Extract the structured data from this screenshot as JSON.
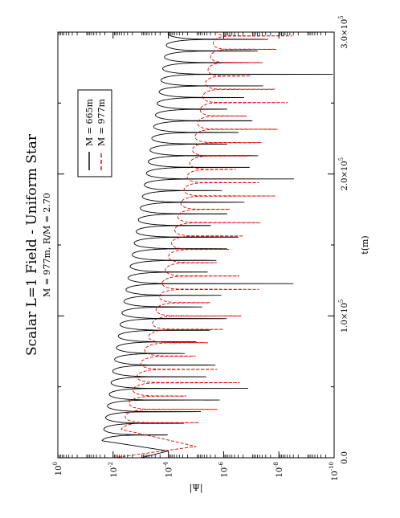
{
  "chart_data": {
    "type": "line",
    "title": "Scalar L=1 Field - Uniform Star",
    "subtitle": "M = 977m, R/M = 2.70",
    "xlabel": "t(m)",
    "ylabel": "|Ψ|",
    "xlim": [
      0,
      300000
    ],
    "ylim_log10": [
      -10,
      0
    ],
    "y_scale": "log",
    "rotated": "90 degrees counter-clockwise",
    "grid": false,
    "legend_position": "top-right",
    "x_ticks": [
      {
        "value": 0,
        "label": "0.0"
      },
      {
        "value": 100000,
        "label": "1.0×10",
        "exp": "5"
      },
      {
        "value": 200000,
        "label": "2.0×10",
        "exp": "5"
      },
      {
        "value": 300000,
        "label": "3.0×10",
        "exp": "5"
      }
    ],
    "y_ticks": [
      {
        "value": 0,
        "label": "10",
        "exp": "0"
      },
      {
        "value": -2,
        "label": "10",
        "exp": "-2"
      },
      {
        "value": -4,
        "label": "10",
        "exp": "-4"
      },
      {
        "value": -6,
        "label": "10",
        "exp": "-6"
      },
      {
        "value": -8,
        "label": "10",
        "exp": "-8"
      },
      {
        "value": -10,
        "label": "10",
        "exp": "-10"
      }
    ],
    "series": [
      {
        "name": "M = 665m",
        "color": "#000000",
        "dash": "solid",
        "period": 8200,
        "start": 12000,
        "peaks": [
          [
            12000,
            -1.6
          ],
          [
            100000,
            -2.3
          ],
          [
            200000,
            -3.2
          ],
          [
            300000,
            -4.0
          ]
        ],
        "dips": [
          [
            12000,
            -5.5
          ],
          [
            100000,
            -6.5
          ],
          [
            200000,
            -7.4
          ],
          [
            300000,
            -8.3
          ]
        ]
      },
      {
        "name": "M = 977m",
        "color": "#e00000",
        "dash": "dashed",
        "period": 9400,
        "start": 20000,
        "peaks": [
          [
            20000,
            -2.3
          ],
          [
            100000,
            -3.5
          ],
          [
            200000,
            -4.7
          ],
          [
            300000,
            -5.7
          ]
        ],
        "dips": [
          [
            20000,
            -4.8
          ],
          [
            100000,
            -5.7
          ],
          [
            200000,
            -6.6
          ],
          [
            300000,
            -7.2
          ]
        ]
      }
    ]
  }
}
